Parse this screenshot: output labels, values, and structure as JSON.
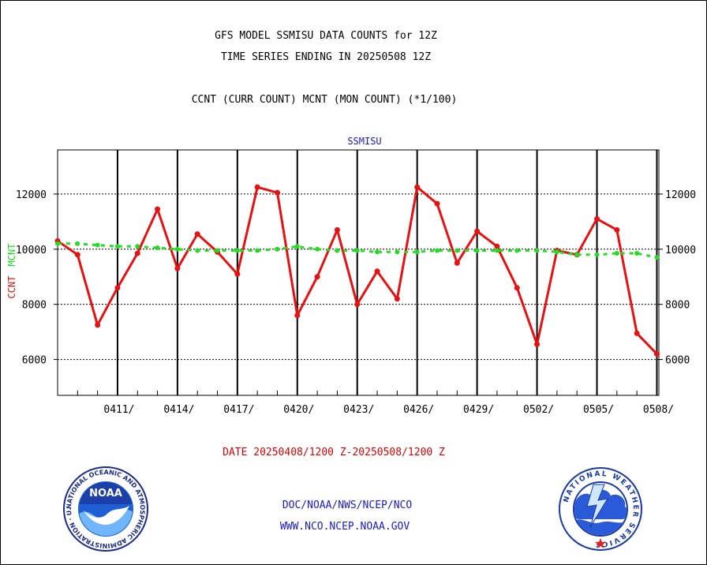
{
  "header": {
    "title_line1": "GFS MODEL SSMISU DATA COUNTS for 12Z",
    "title_line2": "TIME SERIES ENDING IN 20250508 12Z",
    "subtitle": "CCNT (CURR COUNT) MCNT (MON COUNT) (*1/100)"
  },
  "footer": {
    "date_range": "DATE 20250408/1200 Z-20250508/1200 Z",
    "org_line": "DOC/NOAA/NWS/NCEP/NCO",
    "url_line": "WWW.NCO.NCEP.NOAA.GOV"
  },
  "logos": {
    "noaa_text": "NOAA",
    "noaa_ring": "NATIONAL OCEANIC AND ATMOSPHERIC ADMINISTRATION · U.S. DEPARTMENT OF COMMERCE ·",
    "nws_ring": "NATIONAL WEATHER SERVICE"
  },
  "colors": {
    "ccnt": "#e81010",
    "mcnt": "#22dd22",
    "panel_title": "#1a1acc",
    "footer_blue": "#1a1acc",
    "footer_red": "#e00000"
  },
  "chart_data": {
    "type": "line",
    "panel_title": "SSMISU",
    "ylabel_ccnt": "CCNT",
    "ylabel_mcnt": "MCNT",
    "ylim": [
      4700,
      13600
    ],
    "yticks": [
      6000,
      8000,
      10000,
      12000
    ],
    "xticks": [
      "0411/",
      "0414/",
      "0417/",
      "0420/",
      "0423/",
      "0426/",
      "0429/",
      "0502/",
      "0505/",
      "0508/"
    ],
    "grid": true,
    "series": [
      {
        "name": "CCNT",
        "style": "solid",
        "x": [
          "0408",
          "0409",
          "0410",
          "0411",
          "0412",
          "0413",
          "0414",
          "0415",
          "0416",
          "0417",
          "0418",
          "0419",
          "0420",
          "0421",
          "0422",
          "0423",
          "0424",
          "0425",
          "0426",
          "0427",
          "0428",
          "0429",
          "0430",
          "0501",
          "0502",
          "0503",
          "0504",
          "0505",
          "0506",
          "0507",
          "0508"
        ],
        "values": [
          10300,
          9800,
          7250,
          8600,
          9850,
          11450,
          9300,
          10550,
          9900,
          9100,
          12250,
          12050,
          7600,
          9000,
          10700,
          8000,
          9200,
          8200,
          12250,
          11650,
          9500,
          10650,
          10100,
          8600,
          6550,
          9950,
          9800,
          11100,
          10700,
          6950,
          6200
        ]
      },
      {
        "name": "MCNT",
        "style": "dashed",
        "x": [
          "0408",
          "0409",
          "0410",
          "0411",
          "0412",
          "0413",
          "0414",
          "0415",
          "0416",
          "0417",
          "0418",
          "0419",
          "0420",
          "0421",
          "0422",
          "0423",
          "0424",
          "0425",
          "0426",
          "0427",
          "0428",
          "0429",
          "0430",
          "0501",
          "0502",
          "0503",
          "0504",
          "0505",
          "0506",
          "0507",
          "0508"
        ],
        "values": [
          10200,
          10200,
          10150,
          10100,
          10100,
          10050,
          10000,
          9950,
          9950,
          9950,
          9950,
          10000,
          10100,
          10000,
          9950,
          9950,
          9900,
          9900,
          9900,
          9950,
          9950,
          9950,
          9950,
          9950,
          9950,
          9900,
          9800,
          9800,
          9850,
          9850,
          9700
        ]
      }
    ]
  }
}
